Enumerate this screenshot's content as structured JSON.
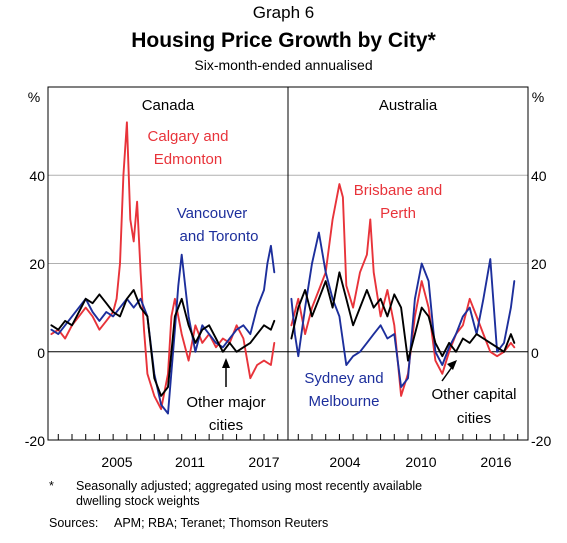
{
  "header": {
    "graph_label": "Graph 6",
    "title": "Housing Price Growth by City*",
    "subtitle": "Six-month-ended annualised"
  },
  "footnote": {
    "marker": "*",
    "line1": "Seasonally adjusted; aggregated using most recently available",
    "line2": "dwelling stock weights"
  },
  "sources": {
    "label": "Sources:",
    "text": "APM; RBA; Teranet; Thomson Reuters"
  },
  "colors": {
    "red": "#e8333a",
    "blue": "#1d2f9c",
    "black": "#000000",
    "grid": "#b0b0b0"
  },
  "chart_data": [
    {
      "type": "line",
      "panel": "Canada",
      "y_unit": "%",
      "ylim": [
        -20,
        60
      ],
      "yticks": [
        -20,
        0,
        20,
        40
      ],
      "xlim": [
        2000.25,
        2017.75
      ],
      "xtick_labels": [
        "2005",
        "2011",
        "2017"
      ],
      "xtick_positions": [
        2005.5,
        2011.5,
        2017.5
      ],
      "grid": true,
      "series": [
        {
          "name": "Calgary and Edmonton",
          "color": "red",
          "x": [
            2000.5,
            2001,
            2001.5,
            2002,
            2002.5,
            2003,
            2003.5,
            2004,
            2004.5,
            2005,
            2005.25,
            2005.5,
            2005.75,
            2006,
            2006.25,
            2006.5,
            2006.75,
            2007,
            2007.25,
            2007.5,
            2008,
            2008.5,
            2009,
            2009.25,
            2009.5,
            2010,
            2010.5,
            2011,
            2011.5,
            2012,
            2012.5,
            2013,
            2013.5,
            2014,
            2014.5,
            2015,
            2015.5,
            2016,
            2016.5,
            2016.75
          ],
          "y": [
            4,
            5,
            3,
            6,
            8,
            10,
            8,
            5,
            7,
            9,
            12,
            20,
            40,
            52,
            30,
            25,
            34,
            18,
            5,
            -5,
            -10,
            -13,
            -5,
            8,
            12,
            4,
            -2,
            6,
            2,
            4,
            1,
            3,
            2,
            6,
            3,
            -6,
            -3,
            -2,
            -3,
            2
          ]
        },
        {
          "name": "Vancouver and Toronto",
          "color": "blue",
          "x": [
            2000.5,
            2001,
            2001.5,
            2002,
            2002.5,
            2003,
            2003.5,
            2004,
            2004.5,
            2005,
            2005.5,
            2006,
            2006.5,
            2007,
            2007.5,
            2008,
            2008.5,
            2009,
            2009.5,
            2009.75,
            2010,
            2010.5,
            2011,
            2011.5,
            2012,
            2012.5,
            2013,
            2013.5,
            2014,
            2014.5,
            2015,
            2015.5,
            2016,
            2016.25,
            2016.5,
            2016.75
          ],
          "y": [
            5,
            4,
            6,
            8,
            10,
            12,
            9,
            7,
            9,
            8,
            10,
            12,
            10,
            12,
            8,
            -5,
            -12,
            -14,
            5,
            15,
            22,
            8,
            0,
            6,
            4,
            2,
            1,
            3,
            5,
            6,
            4,
            10,
            14,
            20,
            24,
            18
          ]
        },
        {
          "name": "Other major cities",
          "color": "black",
          "x": [
            2000.5,
            2001,
            2001.5,
            2002,
            2002.5,
            2003,
            2003.5,
            2004,
            2004.5,
            2005,
            2005.5,
            2006,
            2006.5,
            2007,
            2007.5,
            2008,
            2008.5,
            2009,
            2009.5,
            2010,
            2010.5,
            2011,
            2011.5,
            2012,
            2012.5,
            2013,
            2013.5,
            2014,
            2014.5,
            2015,
            2015.5,
            2016,
            2016.5,
            2016.75
          ],
          "y": [
            6,
            5,
            7,
            6,
            9,
            12,
            11,
            13,
            11,
            9,
            8,
            12,
            14,
            10,
            8,
            -6,
            -10,
            -8,
            8,
            12,
            6,
            2,
            5,
            6,
            3,
            0,
            2,
            0,
            1,
            2,
            4,
            6,
            5,
            7
          ]
        }
      ],
      "annotations": [
        "Calgary and Edmonton",
        "Vancouver and Toronto",
        "Other major cities"
      ]
    },
    {
      "type": "line",
      "panel": "Australia",
      "y_unit": "%",
      "ylim": [
        -20,
        60
      ],
      "yticks": [
        -20,
        0,
        20,
        40
      ],
      "xlim": [
        2000.25,
        2017.75
      ],
      "xtick_labels": [
        "2004",
        "2010",
        "2016"
      ],
      "xtick_positions": [
        2004.5,
        2010.5,
        2016.5
      ],
      "grid": true,
      "series": [
        {
          "name": "Brisbane and Perth",
          "color": "red",
          "x": [
            2000.5,
            2001,
            2001.5,
            2002,
            2002.5,
            2003,
            2003.5,
            2004,
            2004.25,
            2004.5,
            2005,
            2005.5,
            2006,
            2006.25,
            2006.5,
            2007,
            2007.5,
            2008,
            2008.5,
            2009,
            2009.5,
            2010,
            2010.5,
            2011,
            2011.5,
            2012,
            2012.5,
            2013,
            2013.5,
            2014,
            2014.5,
            2015,
            2015.5,
            2016,
            2016.5,
            2016.75
          ],
          "y": [
            6,
            12,
            4,
            10,
            14,
            18,
            30,
            38,
            35,
            15,
            10,
            18,
            22,
            30,
            18,
            8,
            14,
            6,
            -10,
            -5,
            8,
            16,
            10,
            -2,
            -5,
            0,
            4,
            6,
            12,
            8,
            4,
            0,
            -1,
            0,
            2,
            1
          ]
        },
        {
          "name": "Sydney and Melbourne",
          "color": "blue",
          "x": [
            2000.5,
            2000.75,
            2001,
            2001.5,
            2002,
            2002.5,
            2003,
            2003.5,
            2004,
            2004.5,
            2005,
            2005.5,
            2006,
            2006.5,
            2007,
            2007.5,
            2008,
            2008.5,
            2009,
            2009.5,
            2010,
            2010.5,
            2011,
            2011.5,
            2012,
            2012.5,
            2013,
            2013.5,
            2014,
            2014.5,
            2015,
            2015.5,
            2016,
            2016.5,
            2016.75
          ],
          "y": [
            12,
            4,
            -1,
            10,
            20,
            27,
            18,
            12,
            8,
            -3,
            -1,
            0,
            2,
            4,
            6,
            3,
            4,
            -8,
            -6,
            12,
            20,
            16,
            0,
            -3,
            1,
            4,
            8,
            10,
            4,
            12,
            21,
            0,
            2,
            10,
            16
          ]
        },
        {
          "name": "Other capital cities",
          "color": "black",
          "x": [
            2000.5,
            2001,
            2001.5,
            2002,
            2002.5,
            2003,
            2003.5,
            2004,
            2004.5,
            2005,
            2005.5,
            2006,
            2006.5,
            2007,
            2007.5,
            2008,
            2008.5,
            2009,
            2009.5,
            2010,
            2010.5,
            2011,
            2011.5,
            2012,
            2012.5,
            2013,
            2013.5,
            2014,
            2014.5,
            2015,
            2015.5,
            2016,
            2016.5,
            2016.75
          ],
          "y": [
            3,
            10,
            14,
            8,
            12,
            16,
            10,
            18,
            12,
            6,
            10,
            14,
            10,
            12,
            8,
            13,
            10,
            -2,
            4,
            10,
            8,
            2,
            -1,
            2,
            0,
            3,
            2,
            4,
            3,
            2,
            1,
            0,
            4,
            2
          ]
        }
      ],
      "annotations": [
        "Brisbane and Perth",
        "Sydney and Melbourne",
        "Other capital cities"
      ]
    }
  ],
  "panels": {
    "left_title": "Canada",
    "right_title": "Australia",
    "left_unit": "%",
    "right_unit": "%",
    "left_yticks": [
      "40",
      "20",
      "0",
      "-20"
    ],
    "right_yticks": [
      "40",
      "20",
      "0",
      "-20"
    ]
  },
  "labels": {
    "calgary_1": "Calgary and",
    "calgary_2": "Edmonton",
    "vancouver_1": "Vancouver",
    "vancouver_2": "and Toronto",
    "othermajor_1": "Other major",
    "othermajor_2": "cities",
    "brisbane_1": "Brisbane and",
    "brisbane_2": "Perth",
    "sydney_1": "Sydney and",
    "sydney_2": "Melbourne",
    "othercap_1": "Other capital",
    "othercap_2": "cities"
  }
}
